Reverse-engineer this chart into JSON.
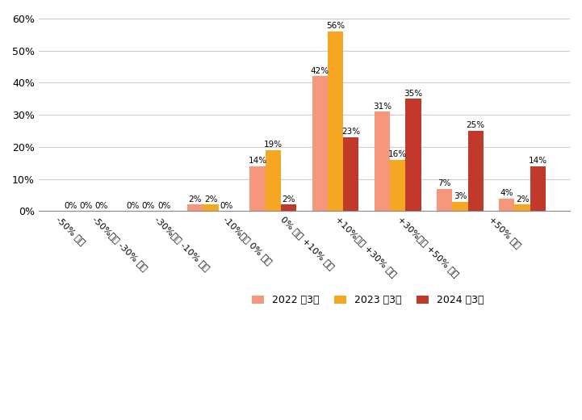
{
  "categories": [
    "-50% 未満",
    "-50%以上 -30% 未満",
    "-30%以上 -10% 未満",
    "-10%以上 0% 未満",
    "0% 以上 +10% 未満",
    "+10%以上 +30% 未満",
    "+30%以上 +50% 未満",
    "+50% 以上"
  ],
  "series": {
    "2022年3月": [
      0,
      0,
      2,
      14,
      42,
      31,
      7,
      4
    ],
    "2023年3月": [
      0,
      0,
      2,
      19,
      56,
      16,
      3,
      2
    ],
    "2024年3月": [
      0,
      0,
      0,
      2,
      23,
      35,
      25,
      14
    ]
  },
  "colors": {
    "2022年3月": "#F4977A",
    "2023年3月": "#F5A623",
    "2024年3月": "#C0392B"
  },
  "legend_labels": [
    "2022 年3月",
    "2023 年3月",
    "2024 年3月"
  ],
  "ylim": [
    0,
    62
  ],
  "yticks": [
    0,
    10,
    20,
    30,
    40,
    50,
    60
  ],
  "background_color": "#ffffff",
  "grid_color": "#cccccc",
  "bar_width": 0.25
}
